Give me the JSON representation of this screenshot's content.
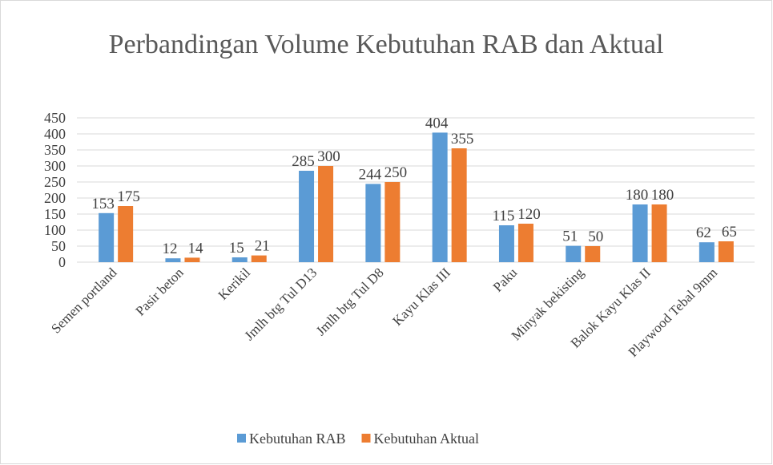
{
  "chart_data": {
    "type": "bar",
    "title": "Perbandingan Volume Kebutuhan RAB dan Aktual",
    "categories": [
      "Semen portland",
      "Pasir beton",
      "Kerikil",
      "Jmlh btg Tul D13",
      "Jmlh btg Tul D8",
      "Kayu Klas III",
      "Paku",
      "Minyak bekisting",
      "Balok Kayu Klas II",
      "Playwood Tebal 9mm"
    ],
    "series": [
      {
        "name": "Kebutuhan RAB",
        "color": "#5b9bd5",
        "values": [
          153,
          12,
          15,
          285,
          244,
          404,
          115,
          51,
          180,
          62
        ]
      },
      {
        "name": "Kebutuhan Aktual",
        "color": "#ed7d31",
        "values": [
          175,
          14,
          21,
          300,
          250,
          355,
          120,
          50,
          180,
          65
        ]
      }
    ],
    "ylim": [
      0,
      450
    ],
    "yticks": [
      0,
      50,
      100,
      150,
      200,
      250,
      300,
      350,
      400,
      450
    ],
    "grid": true,
    "legend": "bottom"
  }
}
